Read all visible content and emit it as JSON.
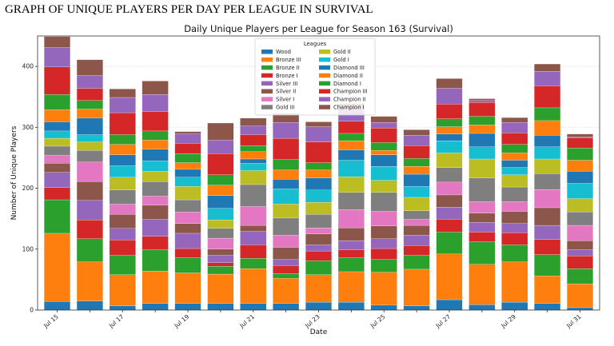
{
  "page": {
    "heading": "GRAPH OF UNIQUE PLAYERS PER DAY PER LEAGUE IN SURVIVAL"
  },
  "chart_data": {
    "type": "bar",
    "stacked": true,
    "title": "Daily Unique Players per League for Season 163 (Survival)",
    "xlabel": "Date",
    "ylabel": "Number of Unique Players",
    "ylim": [
      0,
      450
    ],
    "yticks": [
      0,
      100,
      200,
      300,
      400
    ],
    "grid": true,
    "legend_title": "Leagues",
    "legend_position": "top-center",
    "categories": [
      "Jul 15",
      "Jul 16",
      "Jul 17",
      "Jul 18",
      "Jul 19",
      "Jul 20",
      "Jul 21",
      "Jul 22",
      "Jul 23",
      "Jul 24",
      "Jul 25",
      "Jul 26",
      "Jul 27",
      "Jul 28",
      "Jul 29",
      "Jul 30",
      "Jul 31"
    ],
    "xtick_labels": [
      "Jul 15",
      "",
      "Jul 17",
      "",
      "Jul 19",
      "",
      "Jul 21",
      "",
      "Jul 23",
      "",
      "Jul 25",
      "",
      "Jul 27",
      "",
      "Jul 29",
      "",
      "Jul 31"
    ],
    "series": [
      {
        "name": "Wood",
        "color": "#1f77b4",
        "values": [
          14,
          15,
          7,
          11,
          11,
          11,
          11,
          11,
          13,
          13,
          8,
          7,
          17,
          9,
          13,
          11,
          4
        ]
      },
      {
        "name": "Bronze III",
        "color": "#ff7f0e",
        "values": [
          112,
          64,
          51,
          53,
          50,
          48,
          57,
          41,
          45,
          50,
          54,
          60,
          75,
          66,
          66,
          45,
          39
        ]
      },
      {
        "name": "Bronze II",
        "color": "#2ca02c",
        "values": [
          55,
          38,
          32,
          35,
          25,
          13,
          17,
          8,
          23,
          23,
          21,
          23,
          36,
          37,
          28,
          35,
          25
        ]
      },
      {
        "name": "Bronze I",
        "color": "#d62728",
        "values": [
          20,
          31,
          25,
          22,
          15,
          6,
          22,
          13,
          16,
          13,
          18,
          16,
          21,
          16,
          20,
          25,
          21
        ]
      },
      {
        "name": "Silver III",
        "color": "#9467bd",
        "values": [
          25,
          32,
          19,
          28,
          25,
          12,
          22,
          10,
          10,
          15,
          16,
          17,
          20,
          16,
          15,
          23,
          10
        ]
      },
      {
        "name": "Silver II",
        "color": "#8c564b",
        "values": [
          15,
          31,
          23,
          23,
          16,
          10,
          10,
          20,
          18,
          21,
          21,
          16,
          20,
          15,
          20,
          29,
          15
        ]
      },
      {
        "name": "Silver I",
        "color": "#e377c2",
        "values": [
          13,
          32,
          17,
          15,
          19,
          18,
          31,
          20,
          10,
          30,
          24,
          10,
          21,
          19,
          16,
          30,
          25
        ]
      },
      {
        "name": "Gold III",
        "color": "#7f7f7f",
        "values": [
          15,
          19,
          23,
          24,
          20,
          16,
          36,
          28,
          22,
          28,
          31,
          14,
          24,
          39,
          24,
          26,
          22
        ]
      },
      {
        "name": "Gold II",
        "color": "#bcbd22",
        "values": [
          13,
          14,
          21,
          17,
          22,
          14,
          23,
          23,
          20,
          26,
          20,
          22,
          24,
          31,
          20,
          24,
          22
        ]
      },
      {
        "name": "Gold I",
        "color": "#17becf",
        "values": [
          12,
          12,
          19,
          17,
          15,
          19,
          12,
          25,
          20,
          27,
          23,
          18,
          20,
          20,
          12,
          20,
          25
        ]
      },
      {
        "name": "Diamond III",
        "color": "#1f77b4",
        "values": [
          15,
          27,
          18,
          19,
          13,
          21,
          7,
          16,
          20,
          17,
          19,
          20,
          11,
          22,
          12,
          19,
          20
        ]
      },
      {
        "name": "Diamond II",
        "color": "#ff7f0e",
        "values": [
          20,
          15,
          17,
          15,
          11,
          17,
          12,
          15,
          13,
          15,
          7,
          13,
          12,
          14,
          12,
          24,
          18
        ]
      },
      {
        "name": "Diamond I",
        "color": "#2ca02c",
        "values": [
          25,
          14,
          16,
          15,
          15,
          17,
          10,
          17,
          12,
          12,
          13,
          13,
          13,
          14,
          14,
          21,
          20
        ]
      },
      {
        "name": "Champion III",
        "color": "#d62728",
        "values": [
          45,
          20,
          36,
          32,
          17,
          35,
          18,
          35,
          34,
          20,
          24,
          21,
          24,
          23,
          19,
          36,
          17
        ]
      },
      {
        "name": "Champion II",
        "color": "#9467bd",
        "values": [
          32,
          21,
          25,
          28,
          15,
          22,
          14,
          26,
          25,
          20,
          9,
          17,
          26,
          3,
          17,
          24,
          1
        ]
      },
      {
        "name": "Champion I",
        "color": "#8c564b",
        "values": [
          18,
          26,
          14,
          22,
          4,
          28,
          13,
          15,
          8,
          9,
          10,
          9,
          16,
          3,
          8,
          12,
          5
        ]
      }
    ]
  }
}
